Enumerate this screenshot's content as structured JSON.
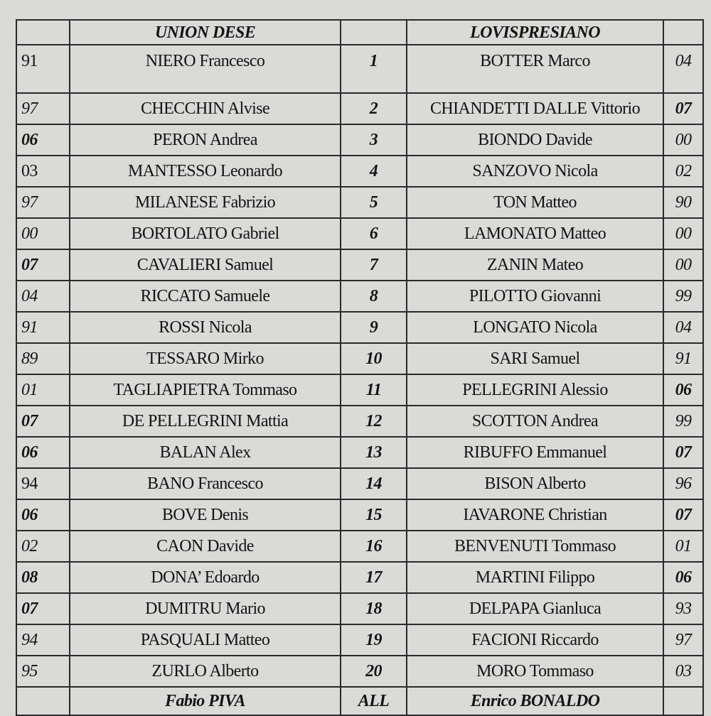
{
  "header": {
    "home_team": "UNION DESE",
    "away_team": "LOVISPRESIANO"
  },
  "rows": [
    {
      "home_year": "91",
      "home_year_style": "regular",
      "home_player": "NIERO Francesco",
      "number": "1",
      "away_player": "BOTTER Marco",
      "away_year": "04",
      "away_year_style": "italic"
    },
    {
      "home_year": "97",
      "home_year_style": "italic",
      "home_player": "CHECCHIN Alvise",
      "number": "2",
      "away_player": "CHIANDETTI DALLE Vittorio",
      "away_year": "07",
      "away_year_style": "bold-italic"
    },
    {
      "home_year": "06",
      "home_year_style": "bold-italic",
      "home_player": "PERON Andrea",
      "number": "3",
      "away_player": "BIONDO Davide",
      "away_year": "00",
      "away_year_style": "italic"
    },
    {
      "home_year": "03",
      "home_year_style": "regular",
      "home_player": "MANTESSO Leonardo",
      "number": "4",
      "away_player": "SANZOVO Nicola",
      "away_year": "02",
      "away_year_style": "italic"
    },
    {
      "home_year": "97",
      "home_year_style": "italic",
      "home_player": "MILANESE Fabrizio",
      "number": "5",
      "away_player": "TON Matteo",
      "away_year": "90",
      "away_year_style": "italic"
    },
    {
      "home_year": "00",
      "home_year_style": "italic",
      "home_player": "BORTOLATO Gabriel",
      "number": "6",
      "away_player": "LAMONATO Matteo",
      "away_year": "00",
      "away_year_style": "italic"
    },
    {
      "home_year": "07",
      "home_year_style": "bold-italic",
      "home_player": "CAVALIERI Samuel",
      "number": "7",
      "away_player": "ZANIN Mateo",
      "away_year": "00",
      "away_year_style": "italic"
    },
    {
      "home_year": "04",
      "home_year_style": "italic",
      "home_player": "RICCATO Samuele",
      "number": "8",
      "away_player": "PILOTTO Giovanni",
      "away_year": "99",
      "away_year_style": "italic"
    },
    {
      "home_year": "91",
      "home_year_style": "italic",
      "home_player": "ROSSI Nicola",
      "number": "9",
      "away_player": "LONGATO Nicola",
      "away_year": "04",
      "away_year_style": "italic"
    },
    {
      "home_year": "89",
      "home_year_style": "italic",
      "home_player": "TESSARO Mirko",
      "number": "10",
      "away_player": "SARI Samuel",
      "away_year": "91",
      "away_year_style": "italic"
    },
    {
      "home_year": "01",
      "home_year_style": "italic",
      "home_player": "TAGLIAPIETRA Tommaso",
      "number": "11",
      "away_player": "PELLEGRINI Alessio",
      "away_year": "06",
      "away_year_style": "bold-italic"
    },
    {
      "home_year": "07",
      "home_year_style": "bold-italic",
      "home_player": "DE PELLEGRINI Mattia",
      "number": "12",
      "away_player": "SCOTTON Andrea",
      "away_year": "99",
      "away_year_style": "italic"
    },
    {
      "home_year": "06",
      "home_year_style": "bold-italic",
      "home_player": "BALAN Alex",
      "number": "13",
      "away_player": "RIBUFFO Emmanuel",
      "away_year": "07",
      "away_year_style": "bold-italic"
    },
    {
      "home_year": "94",
      "home_year_style": "regular",
      "home_player": "BANO Francesco",
      "number": "14",
      "away_player": "BISON Alberto",
      "away_year": "96",
      "away_year_style": "italic"
    },
    {
      "home_year": "06",
      "home_year_style": "bold-italic",
      "home_player": "BOVE Denis",
      "number": "15",
      "away_player": "IAVARONE Christian",
      "away_year": "07",
      "away_year_style": "bold-italic"
    },
    {
      "home_year": "02",
      "home_year_style": "italic",
      "home_player": "CAON Davide",
      "number": "16",
      "away_player": "BENVENUTI Tommaso",
      "away_year": "01",
      "away_year_style": "italic"
    },
    {
      "home_year": "08",
      "home_year_style": "bold-italic",
      "home_player": "DONA’ Edoardo",
      "number": "17",
      "away_player": "MARTINI Filippo",
      "away_year": "06",
      "away_year_style": "bold-italic"
    },
    {
      "home_year": "07",
      "home_year_style": "bold-italic",
      "home_player": "DUMITRU Mario",
      "number": "18",
      "away_player": "DELPAPA Gianluca",
      "away_year": "93",
      "away_year_style": "italic"
    },
    {
      "home_year": "94",
      "home_year_style": "italic",
      "home_player": "PASQUALI Matteo",
      "number": "19",
      "away_player": "FACIONI Riccardo",
      "away_year": "97",
      "away_year_style": "italic"
    },
    {
      "home_year": "95",
      "home_year_style": "italic",
      "home_player": "ZURLO Alberto",
      "number": "20",
      "away_player": "MORO Tommaso",
      "away_year": "03",
      "away_year_style": "italic"
    }
  ],
  "footer": {
    "home_coach": "Fabio PIVA",
    "label": "ALL",
    "away_coach": "Enrico BONALDO"
  }
}
